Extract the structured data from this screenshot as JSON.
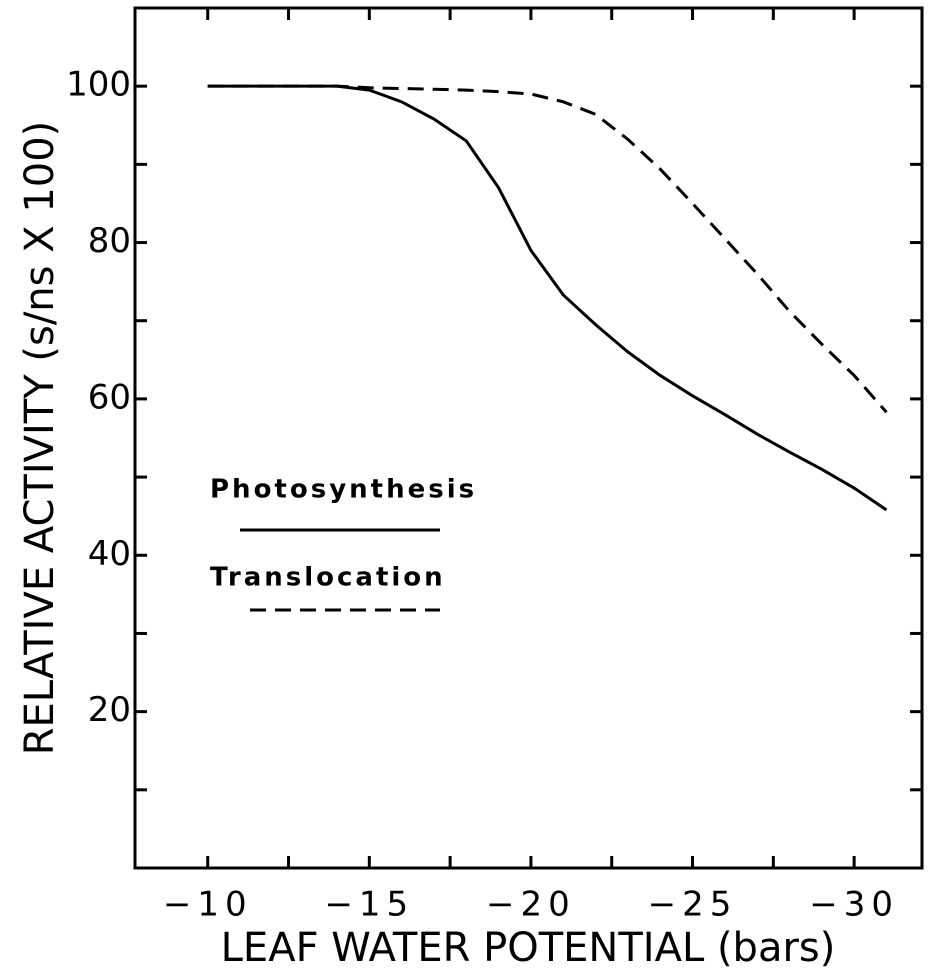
{
  "chart_data": {
    "type": "line",
    "xlabel": "LEAF WATER POTENTIAL (bars)",
    "ylabel": "RELATIVE ACTIVITY (s/ns X 100)",
    "x": [
      -10,
      -12,
      -14,
      -15,
      -16,
      -17,
      -18,
      -19,
      -20,
      -21,
      -22,
      -23,
      -24,
      -25,
      -26,
      -27,
      -28,
      -29,
      -30,
      -31
    ],
    "series": [
      {
        "name": "Photosynthesis",
        "color": "#000000",
        "line_style": "solid",
        "values": [
          100,
          100,
          100,
          99.5,
          98,
          95.8,
          93,
          87,
          79,
          73.3,
          69.5,
          66,
          63,
          60.4,
          58,
          55.5,
          53.2,
          51,
          48.6,
          45.8
        ]
      },
      {
        "name": "Translocation",
        "color": "#000000",
        "line_style": "dashed",
        "values": [
          100,
          100,
          100,
          99.8,
          99.7,
          99.6,
          99.5,
          99.3,
          99,
          98,
          96.4,
          93.2,
          89.4,
          85,
          80.5,
          76,
          71.2,
          67,
          63,
          58.3
        ]
      }
    ],
    "xlim": [
      -7.75,
      -32.1
    ],
    "ylim": [
      0,
      110
    ],
    "xticks": [
      {
        "value": -10,
        "label": "−10"
      },
      {
        "value": -15,
        "label": "−15"
      },
      {
        "value": -20,
        "label": "−20"
      },
      {
        "value": -25,
        "label": "−25"
      },
      {
        "value": -30,
        "label": "−30"
      }
    ],
    "xminor_ticks": [
      -12.5,
      -17.5,
      -22.5,
      -27.5
    ],
    "yticks": [
      20,
      40,
      60,
      80,
      100
    ],
    "yminor_ticks": [
      10,
      30,
      50,
      70,
      90
    ],
    "grid": false
  }
}
